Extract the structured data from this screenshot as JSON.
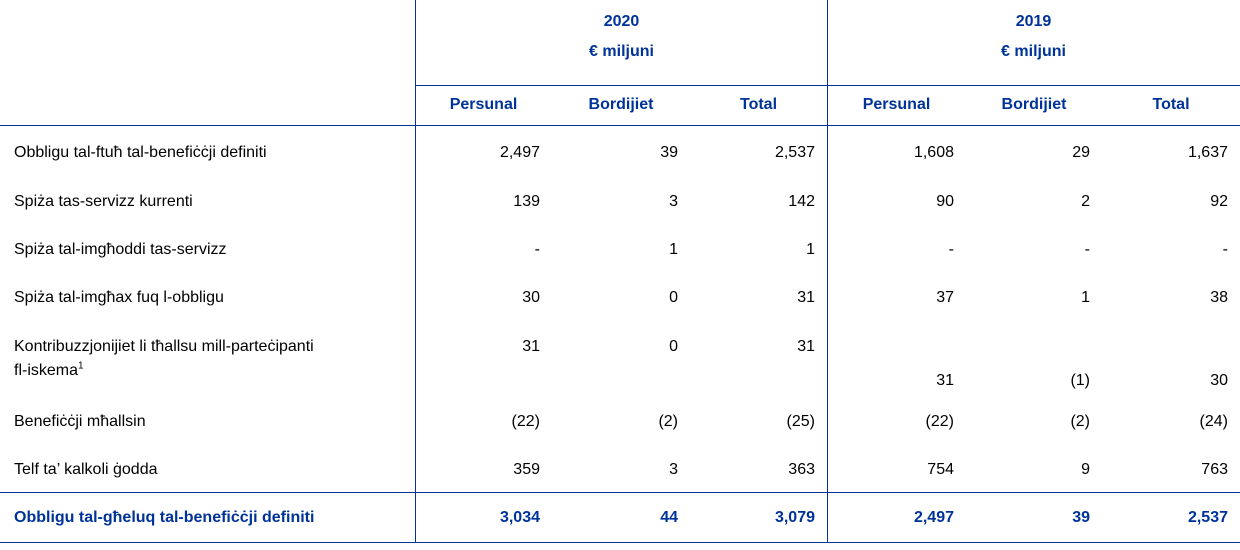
{
  "columns": {
    "groups": [
      {
        "year": "2020",
        "unit": "€ miljuni"
      },
      {
        "year": "2019",
        "unit": "€ miljuni"
      }
    ],
    "subheaders": [
      "Persunal",
      "Bordijiet",
      "Total",
      "Persunal",
      "Bordijiet",
      "Total"
    ]
  },
  "rows": [
    {
      "label": "Obbligu tal-ftuħ tal-benefiċċji definiti",
      "values": [
        "2,497",
        "39",
        "2,537",
        "1,608",
        "29",
        "1,637"
      ]
    },
    {
      "label": "Spiża tas-servizz kurrenti",
      "values": [
        "139",
        "3",
        "142",
        "90",
        "2",
        "92"
      ]
    },
    {
      "label": "Spiża tal-imgħoddi tas-servizz",
      "values": [
        "-",
        "1",
        "1",
        "-",
        "-",
        "-"
      ]
    },
    {
      "label": "Spiża tal-imgħax fuq l-obbligu",
      "values": [
        "30",
        "0",
        "31",
        "37",
        "1",
        "38"
      ]
    },
    {
      "label": "Kontribuzzjonijiet li tħallsu mill-parteċipanti",
      "label_line2": "fl-iskema",
      "footnote": "1",
      "values": [
        "31",
        "0",
        "31",
        "31",
        "(1)",
        "30"
      ]
    },
    {
      "label": "Benefiċċji mħallsin",
      "values": [
        "(22)",
        "(2)",
        "(25)",
        "(22)",
        "(2)",
        "(24)"
      ]
    },
    {
      "label": "Telf ta’ kalkoli ġodda",
      "values": [
        "359",
        "3",
        "363",
        "754",
        "9",
        "763"
      ]
    }
  ],
  "total": {
    "label": "Obbligu tal-għeluq tal-benefiċċji definiti",
    "values": [
      "3,034",
      "44",
      "3,079",
      "2,497",
      "39",
      "2,537"
    ]
  }
}
